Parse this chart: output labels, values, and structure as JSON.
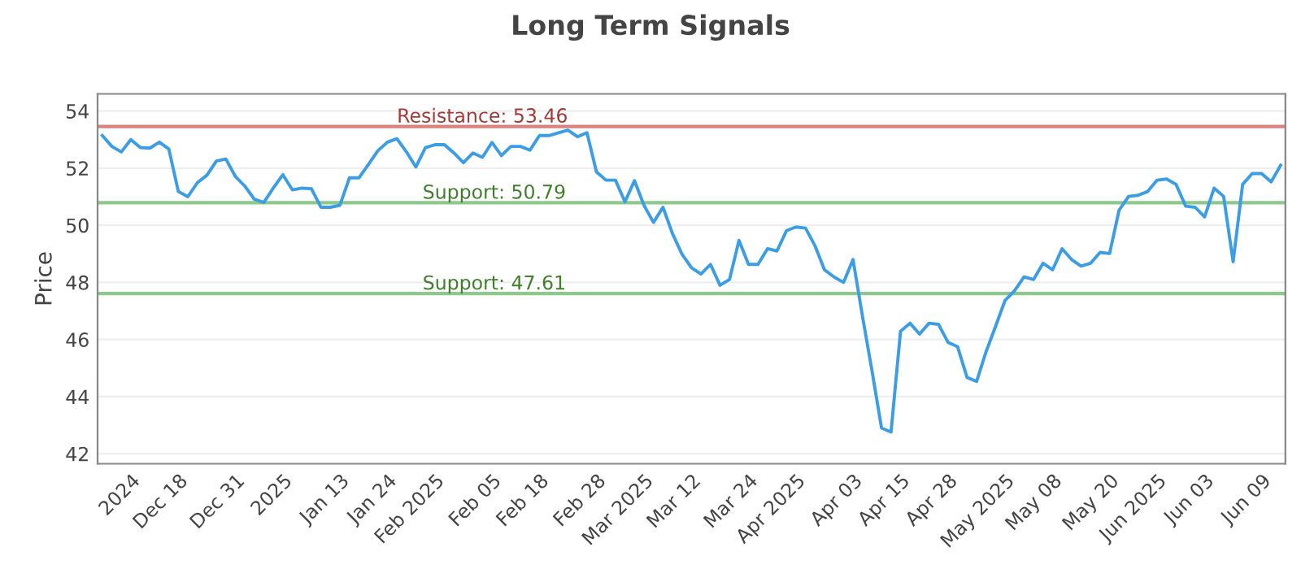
{
  "chart_data": {
    "type": "line",
    "title": "Long Term Signals",
    "ylabel": "Price",
    "categories": [
      null,
      null,
      null,
      "2024",
      null,
      null,
      null,
      null,
      "Dec 18",
      null,
      null,
      null,
      null,
      null,
      "Dec 31",
      null,
      null,
      null,
      null,
      "2025",
      null,
      null,
      null,
      null,
      null,
      "Jan 13",
      null,
      null,
      null,
      null,
      "Jan 24",
      null,
      null,
      null,
      null,
      "Feb 2025",
      null,
      null,
      null,
      null,
      null,
      "Feb 05",
      null,
      null,
      null,
      null,
      "Feb 18",
      null,
      null,
      null,
      null,
      null,
      "Feb 28",
      null,
      null,
      null,
      null,
      "Mar 2025",
      null,
      null,
      null,
      null,
      "Mar 12",
      null,
      null,
      null,
      null,
      null,
      "Mar 24",
      null,
      null,
      null,
      null,
      "Apr 2025",
      null,
      null,
      null,
      null,
      null,
      "Apr 03",
      null,
      null,
      null,
      null,
      "Apr 15",
      null,
      null,
      null,
      null,
      "Apr 28",
      null,
      null,
      null,
      null,
      null,
      "May 2025",
      null,
      null,
      null,
      null,
      "May 08",
      null,
      null,
      null,
      null,
      null,
      "May 20",
      null,
      null,
      null,
      null,
      "Jun 2025",
      null,
      null,
      null,
      null,
      "Jun 03",
      null,
      null,
      null,
      null,
      null,
      "Jun 09",
      null,
      null
    ],
    "series": [
      {
        "color": "#3a9de6",
        "values": [
          53.14,
          52.76,
          52.57,
          53.0,
          52.72,
          52.7,
          52.91,
          52.67,
          51.18,
          51.0,
          51.49,
          51.75,
          52.25,
          52.32,
          51.71,
          51.37,
          50.91,
          50.8,
          51.31,
          51.77,
          51.24,
          51.3,
          51.28,
          50.63,
          50.63,
          50.7,
          51.66,
          51.66,
          52.13,
          52.61,
          52.91,
          53.03,
          52.57,
          52.04,
          52.72,
          52.82,
          52.82,
          52.53,
          52.19,
          52.53,
          52.38,
          52.9,
          52.44,
          52.76,
          52.76,
          52.63,
          53.14,
          53.14,
          53.24,
          53.33,
          53.1,
          53.24,
          51.87,
          51.58,
          51.58,
          50.82,
          51.56,
          50.7,
          50.1,
          50.63,
          49.71,
          48.99,
          48.51,
          48.29,
          48.63,
          47.9,
          48.1,
          49.47,
          48.63,
          48.63,
          49.18,
          49.1,
          49.81,
          49.94,
          49.9,
          49.28,
          48.44,
          48.19,
          48.0,
          48.8,
          46.8,
          44.9,
          42.9,
          42.76,
          46.29,
          46.57,
          46.19,
          46.57,
          46.53,
          45.9,
          45.75,
          44.67,
          44.53,
          45.57,
          46.46,
          47.37,
          47.71,
          48.19,
          48.1,
          48.67,
          48.44,
          49.18,
          48.8,
          48.57,
          48.67,
          49.05,
          49.01,
          50.53,
          51.01,
          51.05,
          51.18,
          51.58,
          51.62,
          51.43,
          50.67,
          50.63,
          50.29,
          51.3,
          51.01,
          48.72,
          51.43,
          51.81,
          51.81,
          51.52,
          52.1
        ]
      }
    ],
    "ylim": [
      41.65,
      54.6
    ],
    "yticks": [
      42,
      44,
      46,
      48,
      50,
      52,
      54
    ],
    "grid": "y",
    "marker": "none",
    "line_style": "solid",
    "ref_lines": [
      {
        "axis": "y",
        "value": 53.46,
        "label": "Resistance: 53.46",
        "color": "#d9837f"
      },
      {
        "axis": "y",
        "value": 50.79,
        "label": "Support: 50.79",
        "color": "#8cc98a"
      },
      {
        "axis": "y",
        "value": 47.61,
        "label": "Support: 47.61",
        "color": "#8cc98a"
      }
    ]
  }
}
